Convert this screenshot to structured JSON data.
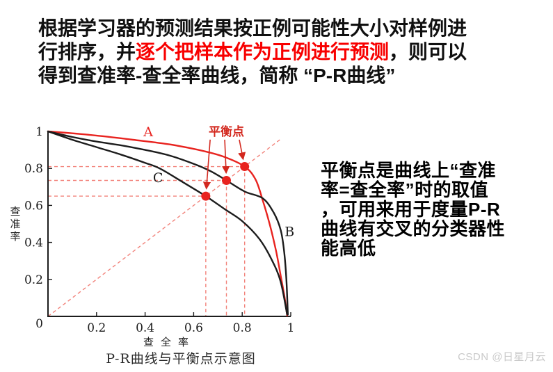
{
  "intro": {
    "lines": [
      [
        {
          "text": "根据学习器的预测结果按正例可能性大小对样例进",
          "color": "black"
        }
      ],
      [
        {
          "text": "行排序，并",
          "color": "black"
        },
        {
          "text": "逐个把样本作为正例进行预测",
          "color": "red"
        },
        {
          "text": "，则可以",
          "color": "black"
        }
      ],
      [
        {
          "text": "得到查准率-查全率曲线，简称 “P-R曲线”",
          "color": "black"
        }
      ]
    ]
  },
  "side_note": {
    "lines": [
      "平衡点是曲线上“查准",
      "率=查全率”时的取值",
      "，可用来用于度量P-R",
      "曲线有交叉的分类器性",
      "能高低"
    ]
  },
  "chart_caption": "P-R曲线与平衡点示意图",
  "watermark": "CSDN @日星月云",
  "chart_data": {
    "type": "line",
    "title": "P-R曲线与平衡点示意图",
    "xlabel": "查全率",
    "ylabel": "查准率",
    "xlim": [
      0,
      1
    ],
    "ylim": [
      0,
      1
    ],
    "x_ticks": [
      0.2,
      0.4,
      0.6,
      0.8,
      1
    ],
    "y_ticks": [
      0,
      0.2,
      0.4,
      0.6,
      0.8,
      1
    ],
    "grid": false,
    "legend_position": "inline-labels",
    "diagonal_reference": {
      "from": [
        0,
        0
      ],
      "to": [
        0.96,
        0.96
      ],
      "style": "dashed",
      "meaning": "查准率=查全率"
    },
    "series": [
      {
        "name": "A",
        "color": "#e8231f",
        "label_pos": [
          0.413,
          0.974
        ],
        "label_anchor": "middle",
        "points": [
          [
            0,
            1
          ],
          [
            0.1,
            0.99
          ],
          [
            0.22,
            0.975
          ],
          [
            0.35,
            0.955
          ],
          [
            0.5,
            0.93
          ],
          [
            0.62,
            0.9
          ],
          [
            0.72,
            0.865
          ],
          [
            0.81,
            0.81
          ],
          [
            0.855,
            0.74
          ],
          [
            0.885,
            0.625
          ],
          [
            0.915,
            0.49
          ],
          [
            0.94,
            0.35
          ],
          [
            0.96,
            0.21
          ],
          [
            0.975,
            0.1
          ],
          [
            0.985,
            0.005
          ]
        ]
      },
      {
        "name": "B",
        "color": "#1c1c1c",
        "label_pos": [
          0.975,
          0.435
        ],
        "label_anchor": "start",
        "points": [
          [
            0,
            1
          ],
          [
            0.1,
            0.97
          ],
          [
            0.2,
            0.945
          ],
          [
            0.3,
            0.925
          ],
          [
            0.4,
            0.9
          ],
          [
            0.5,
            0.87
          ],
          [
            0.6,
            0.825
          ],
          [
            0.67,
            0.785
          ],
          [
            0.735,
            0.735
          ],
          [
            0.81,
            0.675
          ],
          [
            0.885,
            0.638
          ],
          [
            0.93,
            0.56
          ],
          [
            0.958,
            0.47
          ],
          [
            0.972,
            0.36
          ],
          [
            0.982,
            0.2
          ],
          [
            0.988,
            0.01
          ]
        ]
      },
      {
        "name": "C",
        "color": "#1c1c1c",
        "label_pos": [
          0.453,
          0.726
        ],
        "label_anchor": "middle",
        "points": [
          [
            0,
            1
          ],
          [
            0.1,
            0.955
          ],
          [
            0.2,
            0.915
          ],
          [
            0.3,
            0.875
          ],
          [
            0.4,
            0.83
          ],
          [
            0.46,
            0.8
          ],
          [
            0.55,
            0.73
          ],
          [
            0.65,
            0.65
          ],
          [
            0.73,
            0.578
          ],
          [
            0.8,
            0.515
          ],
          [
            0.87,
            0.42
          ],
          [
            0.92,
            0.31
          ],
          [
            0.958,
            0.19
          ],
          [
            0.985,
            0.01
          ]
        ]
      }
    ],
    "balance_label": "平衡点",
    "balance_label_pos": [
      0.735,
      0.978
    ],
    "balance_points": [
      [
        0.65,
        0.65
      ],
      [
        0.735,
        0.735
      ],
      [
        0.81,
        0.81
      ]
    ],
    "colors": {
      "curve_red": "#e8231f",
      "dash_red": "#f2837b",
      "annotation_red": "#d3281e",
      "axis": "#1c1c1c"
    }
  }
}
